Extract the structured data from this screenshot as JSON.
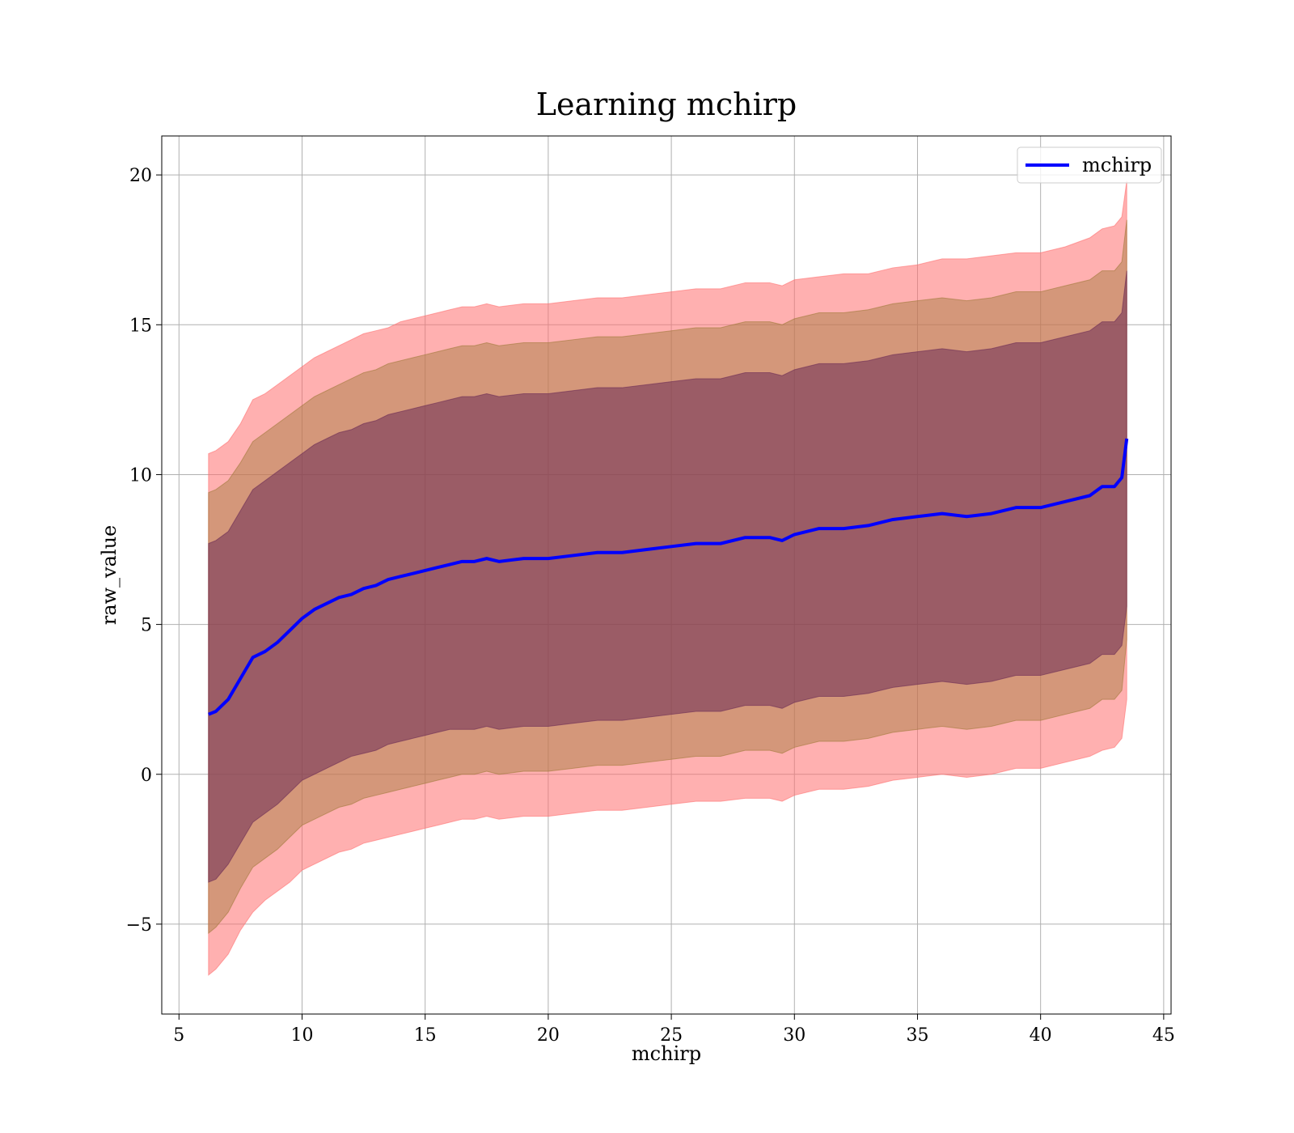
{
  "chart_data": {
    "type": "line",
    "title": "Learning mchirp",
    "xlabel": "mchirp",
    "ylabel": "raw_value",
    "xlim": [
      4.3,
      45.3
    ],
    "ylim": [
      -8.0,
      21.3
    ],
    "xticks": [
      5,
      10,
      15,
      20,
      25,
      30,
      35,
      40,
      45
    ],
    "xtick_labels": [
      "5",
      "10",
      "15",
      "20",
      "25",
      "30",
      "35",
      "40",
      "45"
    ],
    "yticks": [
      -5,
      0,
      5,
      10,
      15,
      20
    ],
    "ytick_labels": [
      "−5",
      "0",
      "5",
      "10",
      "15",
      "20"
    ],
    "grid": true,
    "legend": {
      "placement": "top-right",
      "entries": [
        {
          "name": "mchirp",
          "color": "#0000ff"
        }
      ]
    },
    "series": [
      {
        "name": "mchirp",
        "color": "#0000ff",
        "x": [
          6.2,
          6.5,
          7.0,
          7.5,
          8.0,
          8.5,
          9.0,
          9.5,
          10.0,
          10.5,
          11.0,
          11.5,
          12.0,
          12.5,
          13.0,
          13.5,
          14.0,
          14.5,
          15.0,
          15.5,
          16.0,
          16.5,
          17.0,
          17.5,
          18.0,
          19.0,
          20.0,
          21.0,
          22.0,
          23.0,
          24.0,
          25.0,
          26.0,
          27.0,
          28.0,
          29.0,
          29.5,
          30.0,
          31.0,
          32.0,
          33.0,
          34.0,
          35.0,
          36.0,
          37.0,
          38.0,
          39.0,
          40.0,
          41.0,
          42.0,
          42.5,
          43.0,
          43.3,
          43.5
        ],
        "values": [
          2.0,
          2.1,
          2.5,
          3.2,
          3.9,
          4.1,
          4.4,
          4.8,
          5.2,
          5.5,
          5.7,
          5.9,
          6.0,
          6.2,
          6.3,
          6.5,
          6.6,
          6.7,
          6.8,
          6.9,
          7.0,
          7.1,
          7.1,
          7.2,
          7.1,
          7.2,
          7.2,
          7.3,
          7.4,
          7.4,
          7.5,
          7.6,
          7.7,
          7.7,
          7.9,
          7.9,
          7.8,
          8.0,
          8.2,
          8.2,
          8.3,
          8.5,
          8.6,
          8.7,
          8.6,
          8.7,
          8.9,
          8.9,
          9.1,
          9.3,
          9.6,
          9.6,
          9.9,
          11.2
        ]
      }
    ],
    "bands": [
      {
        "sigma": 3,
        "color": "#ff6f6f",
        "opacity": 0.55,
        "lower": [
          -6.7,
          -6.5,
          -6.0,
          -5.2,
          -4.6,
          -4.2,
          -3.9,
          -3.6,
          -3.2,
          -3.0,
          -2.8,
          -2.6,
          -2.5,
          -2.3,
          -2.2,
          -2.1,
          -2.0,
          -1.9,
          -1.8,
          -1.7,
          -1.6,
          -1.5,
          -1.5,
          -1.4,
          -1.5,
          -1.4,
          -1.4,
          -1.3,
          -1.2,
          -1.2,
          -1.1,
          -1.0,
          -0.9,
          -0.9,
          -0.8,
          -0.8,
          -0.9,
          -0.7,
          -0.5,
          -0.5,
          -0.4,
          -0.2,
          -0.1,
          0.0,
          -0.1,
          0.0,
          0.2,
          0.2,
          0.4,
          0.6,
          0.8,
          0.9,
          1.2,
          2.5
        ],
        "upper": [
          10.7,
          10.8,
          11.1,
          11.7,
          12.5,
          12.7,
          13.0,
          13.3,
          13.6,
          13.9,
          14.1,
          14.3,
          14.5,
          14.7,
          14.8,
          14.9,
          15.1,
          15.2,
          15.3,
          15.4,
          15.5,
          15.6,
          15.6,
          15.7,
          15.6,
          15.7,
          15.7,
          15.8,
          15.9,
          15.9,
          16.0,
          16.1,
          16.2,
          16.2,
          16.4,
          16.4,
          16.3,
          16.5,
          16.6,
          16.7,
          16.7,
          16.9,
          17.0,
          17.2,
          17.2,
          17.3,
          17.4,
          17.4,
          17.6,
          17.9,
          18.2,
          18.3,
          18.6,
          19.8
        ]
      },
      {
        "sigma": 2,
        "color": "#a0793a",
        "opacity": 0.45,
        "lower": [
          -5.3,
          -5.1,
          -4.6,
          -3.8,
          -3.1,
          -2.8,
          -2.5,
          -2.1,
          -1.7,
          -1.5,
          -1.3,
          -1.1,
          -1.0,
          -0.8,
          -0.7,
          -0.6,
          -0.5,
          -0.4,
          -0.3,
          -0.2,
          -0.1,
          0.0,
          0.0,
          0.1,
          0.0,
          0.1,
          0.1,
          0.2,
          0.3,
          0.3,
          0.4,
          0.5,
          0.6,
          0.6,
          0.8,
          0.8,
          0.7,
          0.9,
          1.1,
          1.1,
          1.2,
          1.4,
          1.5,
          1.6,
          1.5,
          1.6,
          1.8,
          1.8,
          2.0,
          2.2,
          2.5,
          2.5,
          2.8,
          4.5
        ],
        "upper": [
          9.4,
          9.5,
          9.8,
          10.4,
          11.1,
          11.4,
          11.7,
          12.0,
          12.3,
          12.6,
          12.8,
          13.0,
          13.2,
          13.4,
          13.5,
          13.7,
          13.8,
          13.9,
          14.0,
          14.1,
          14.2,
          14.3,
          14.3,
          14.4,
          14.3,
          14.4,
          14.4,
          14.5,
          14.6,
          14.6,
          14.7,
          14.8,
          14.9,
          14.9,
          15.1,
          15.1,
          15.0,
          15.2,
          15.4,
          15.4,
          15.5,
          15.7,
          15.8,
          15.9,
          15.8,
          15.9,
          16.1,
          16.1,
          16.3,
          16.5,
          16.8,
          16.8,
          17.1,
          18.5
        ]
      },
      {
        "sigma": 1,
        "color": "#6b2b55",
        "opacity": 0.55,
        "lower": [
          -3.6,
          -3.5,
          -3.0,
          -2.3,
          -1.6,
          -1.3,
          -1.0,
          -0.6,
          -0.2,
          0.0,
          0.2,
          0.4,
          0.6,
          0.7,
          0.8,
          1.0,
          1.1,
          1.2,
          1.3,
          1.4,
          1.5,
          1.5,
          1.5,
          1.6,
          1.5,
          1.6,
          1.6,
          1.7,
          1.8,
          1.8,
          1.9,
          2.0,
          2.1,
          2.1,
          2.3,
          2.3,
          2.2,
          2.4,
          2.6,
          2.6,
          2.7,
          2.9,
          3.0,
          3.1,
          3.0,
          3.1,
          3.3,
          3.3,
          3.5,
          3.7,
          4.0,
          4.0,
          4.3,
          5.6
        ],
        "upper": [
          7.7,
          7.8,
          8.1,
          8.8,
          9.5,
          9.8,
          10.1,
          10.4,
          10.7,
          11.0,
          11.2,
          11.4,
          11.5,
          11.7,
          11.8,
          12.0,
          12.1,
          12.2,
          12.3,
          12.4,
          12.5,
          12.6,
          12.6,
          12.7,
          12.6,
          12.7,
          12.7,
          12.8,
          12.9,
          12.9,
          13.0,
          13.1,
          13.2,
          13.2,
          13.4,
          13.4,
          13.3,
          13.5,
          13.7,
          13.7,
          13.8,
          14.0,
          14.1,
          14.2,
          14.1,
          14.2,
          14.4,
          14.4,
          14.6,
          14.8,
          15.1,
          15.1,
          15.4,
          16.8
        ]
      }
    ]
  }
}
